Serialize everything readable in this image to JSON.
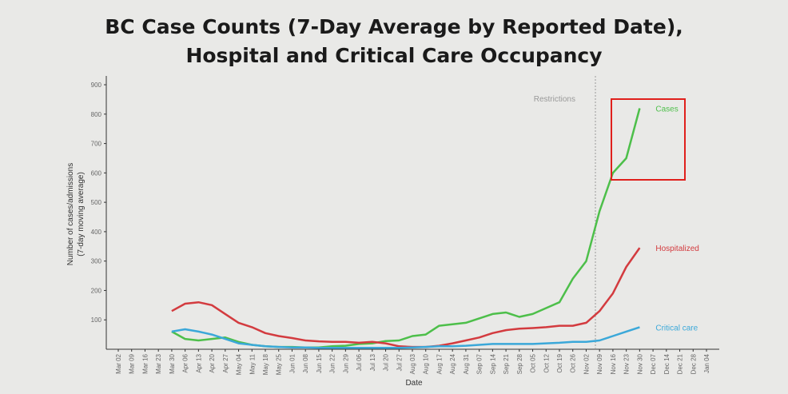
{
  "chart_data": {
    "type": "line",
    "title": [
      "BC Case Counts (7-Day Average by Reported Date),",
      "Hospital and Critical Care Occupancy"
    ],
    "xlabel": "Date",
    "ylabel": [
      "Number of cases/admissions",
      "(7-day moving average)"
    ],
    "annotation": "Restrictions",
    "categories": [
      "Mar 02",
      "Mar 09",
      "Mar 16",
      "Mar 23",
      "Mar 30",
      "Apr 06",
      "Apr 13",
      "Apr 20",
      "Apr 27",
      "May 04",
      "May 11",
      "May 18",
      "May 25",
      "Jun 01",
      "Jun 08",
      "Jun 15",
      "Jun 22",
      "Jun 29",
      "Jul 06",
      "Jul 13",
      "Jul 20",
      "Jul 27",
      "Aug 03",
      "Aug 10",
      "Aug 17",
      "Aug 24",
      "Aug 31",
      "Sep 07",
      "Sep 14",
      "Sep 21",
      "Sep 28",
      "Oct 05",
      "Oct 12",
      "Oct 19",
      "Oct 26",
      "Nov 02",
      "Nov 09",
      "Nov 16",
      "Nov 23",
      "Nov 30",
      "Dec 07",
      "Dec 14",
      "Dec 21",
      "Dec 28",
      "Jan 04"
    ],
    "series": [
      {
        "name": "Cases",
        "color": "#4dbf4a",
        "values": [
          null,
          null,
          null,
          null,
          60,
          35,
          30,
          35,
          40,
          25,
          15,
          10,
          8,
          8,
          6,
          6,
          10,
          12,
          18,
          20,
          28,
          30,
          45,
          50,
          80,
          85,
          90,
          105,
          120,
          125,
          110,
          120,
          140,
          160,
          240,
          300,
          470,
          600,
          650,
          820,
          null,
          null,
          null,
          null,
          null
        ]
      },
      {
        "name": "Hospitalized",
        "color": "#d33b3f",
        "values": [
          null,
          null,
          null,
          null,
          130,
          155,
          160,
          150,
          120,
          90,
          75,
          55,
          45,
          38,
          30,
          27,
          25,
          25,
          22,
          25,
          20,
          10,
          8,
          8,
          12,
          20,
          30,
          40,
          55,
          65,
          70,
          72,
          75,
          80,
          80,
          90,
          130,
          190,
          280,
          345,
          null,
          null,
          null,
          null,
          null
        ]
      },
      {
        "name": "Critical care",
        "color": "#3ba8d9",
        "values": [
          null,
          null,
          null,
          null,
          60,
          68,
          60,
          50,
          35,
          20,
          15,
          10,
          8,
          6,
          6,
          5,
          5,
          5,
          5,
          5,
          5,
          5,
          6,
          8,
          10,
          10,
          12,
          15,
          18,
          18,
          18,
          18,
          20,
          22,
          25,
          25,
          30,
          45,
          60,
          75,
          null,
          null,
          null,
          null,
          null
        ]
      }
    ],
    "ylim": [
      0,
      930
    ],
    "yticks": [
      100,
      200,
      300,
      400,
      500,
      600,
      700,
      800,
      900
    ]
  }
}
